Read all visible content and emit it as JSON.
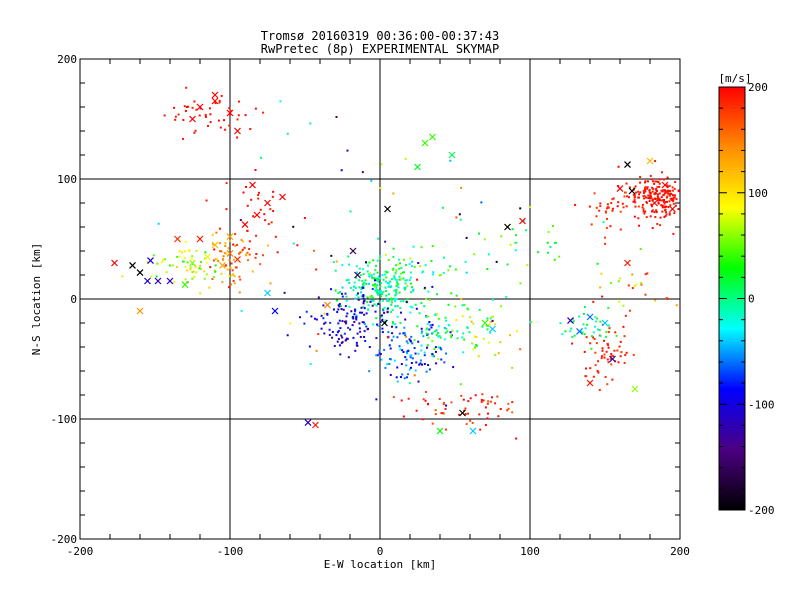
{
  "chart_data": {
    "type": "scatter",
    "title": "Tromsø 20160319 00:36:00-00:37:43",
    "subtitle": "RwPretec (8p) EXPERIMENTAL SKYMAP",
    "xlabel": "E-W location [km]",
    "ylabel": "N-S location [km]",
    "xlim": [
      -200,
      200
    ],
    "ylim": [
      -200,
      200
    ],
    "x_ticks": [
      "-200",
      "-100",
      "0",
      "100",
      "200"
    ],
    "y_ticks": [
      "-200",
      "-100",
      "0",
      "100",
      "200"
    ],
    "grid_x": [
      -100,
      0,
      100
    ],
    "grid_y": [
      -100,
      0,
      100
    ],
    "grid": true,
    "colorbar": {
      "label": "[m/s]",
      "min": -200,
      "max": 200,
      "ticks": [
        "200",
        "100",
        "0",
        "-100",
        "-200"
      ],
      "colormap": "rainbow",
      "stops": [
        "#000000",
        "#4b0082",
        "#0000ff",
        "#00ffff",
        "#00ff00",
        "#ffff00",
        "#ff8c00",
        "#ff0000"
      ]
    },
    "x_markers": [
      {
        "x": -177,
        "y": 30,
        "v": 200
      },
      {
        "x": -165,
        "y": 28,
        "v": -200
      },
      {
        "x": -160,
        "y": 22,
        "v": -200
      },
      {
        "x": -155,
        "y": 15,
        "v": -110
      },
      {
        "x": -148,
        "y": 15,
        "v": -120
      },
      {
        "x": -140,
        "y": 15,
        "v": -110
      },
      {
        "x": -153,
        "y": 32,
        "v": -110
      },
      {
        "x": -130,
        "y": 12,
        "v": 40
      },
      {
        "x": -125,
        "y": 30,
        "v": 60
      },
      {
        "x": -115,
        "y": 35,
        "v": 80
      },
      {
        "x": -105,
        "y": 28,
        "v": 130
      },
      {
        "x": -100,
        "y": 38,
        "v": 150
      },
      {
        "x": -95,
        "y": 33,
        "v": 180
      },
      {
        "x": -110,
        "y": 45,
        "v": 120
      },
      {
        "x": -120,
        "y": 50,
        "v": 190
      },
      {
        "x": -135,
        "y": 50,
        "v": 180
      },
      {
        "x": -100,
        "y": 52,
        "v": 130
      },
      {
        "x": -90,
        "y": 62,
        "v": 200
      },
      {
        "x": -82,
        "y": 70,
        "v": 200
      },
      {
        "x": -75,
        "y": 80,
        "v": 200
      },
      {
        "x": -85,
        "y": 95,
        "v": 200
      },
      {
        "x": -65,
        "y": 85,
        "v": 200
      },
      {
        "x": -120,
        "y": 160,
        "v": 200
      },
      {
        "x": -110,
        "y": 165,
        "v": 200
      },
      {
        "x": -125,
        "y": 150,
        "v": 200
      },
      {
        "x": -95,
        "y": 140,
        "v": 200
      },
      {
        "x": -100,
        "y": 155,
        "v": 200
      },
      {
        "x": -110,
        "y": 170,
        "v": 200
      },
      {
        "x": -160,
        "y": -10,
        "v": 140
      },
      {
        "x": -70,
        "y": -10,
        "v": -90
      },
      {
        "x": -75,
        "y": 5,
        "v": -40
      },
      {
        "x": -35,
        "y": -5,
        "v": 150
      },
      {
        "x": -15,
        "y": 20,
        "v": -160
      },
      {
        "x": -18,
        "y": 40,
        "v": -160
      },
      {
        "x": 5,
        "y": 75,
        "v": -200
      },
      {
        "x": 3,
        "y": -20,
        "v": -200
      },
      {
        "x": 25,
        "y": 110,
        "v": 20
      },
      {
        "x": 35,
        "y": 135,
        "v": 40
      },
      {
        "x": 48,
        "y": 120,
        "v": 10
      },
      {
        "x": 30,
        "y": 130,
        "v": 40
      },
      {
        "x": 55,
        "y": -95,
        "v": -200
      },
      {
        "x": 40,
        "y": -110,
        "v": 30
      },
      {
        "x": 62,
        "y": -110,
        "v": -40
      },
      {
        "x": 85,
        "y": 60,
        "v": -200
      },
      {
        "x": 95,
        "y": 65,
        "v": 200
      },
      {
        "x": 70,
        "y": -20,
        "v": 40
      },
      {
        "x": 75,
        "y": -25,
        "v": -40
      },
      {
        "x": 140,
        "y": -15,
        "v": -60
      },
      {
        "x": 150,
        "y": -20,
        "v": -40
      },
      {
        "x": 155,
        "y": -50,
        "v": -120
      },
      {
        "x": 140,
        "y": -70,
        "v": 190
      },
      {
        "x": 170,
        "y": -75,
        "v": 60
      },
      {
        "x": 165,
        "y": 30,
        "v": 190
      },
      {
        "x": 165,
        "y": 112,
        "v": -200
      },
      {
        "x": 168,
        "y": 90,
        "v": -200
      },
      {
        "x": 180,
        "y": 115,
        "v": 120
      },
      {
        "x": 190,
        "y": 95,
        "v": 200
      },
      {
        "x": 183,
        "y": 80,
        "v": 200
      },
      {
        "x": -48,
        "y": -103,
        "v": -110
      },
      {
        "x": -43,
        "y": -105,
        "v": 190
      },
      {
        "x": 127,
        "y": -18,
        "v": -120
      },
      {
        "x": 133,
        "y": -27,
        "v": -60
      },
      {
        "x": 160,
        "y": 92,
        "v": 200
      },
      {
        "x": 195,
        "y": 75,
        "v": 200
      }
    ],
    "clusters": [
      {
        "cx": 0,
        "cy": 8,
        "sx": 14,
        "sy": 11,
        "n": 220,
        "vmin": -40,
        "vmax": 30
      },
      {
        "cx": -20,
        "cy": -18,
        "sx": 14,
        "sy": 12,
        "n": 130,
        "vmin": -140,
        "vmax": -70
      },
      {
        "cx": 20,
        "cy": -40,
        "sx": 14,
        "sy": 14,
        "n": 120,
        "vmin": -110,
        "vmax": -30
      },
      {
        "cx": 40,
        "cy": -25,
        "sx": 12,
        "sy": 12,
        "n": 50,
        "vmin": -30,
        "vmax": 70
      },
      {
        "cx": 70,
        "cy": -20,
        "sx": 12,
        "sy": 15,
        "n": 45,
        "vmin": -20,
        "vmax": 130
      },
      {
        "cx": 55,
        "cy": -90,
        "sx": 20,
        "sy": 9,
        "n": 60,
        "vmin": 160,
        "vmax": 200
      },
      {
        "cx": 185,
        "cy": 85,
        "sx": 10,
        "sy": 9,
        "n": 200,
        "vmin": 185,
        "vmax": 200
      },
      {
        "cx": 155,
        "cy": 75,
        "sx": 12,
        "sy": 10,
        "n": 40,
        "vmin": 170,
        "vmax": 200
      },
      {
        "cx": 150,
        "cy": -45,
        "sx": 8,
        "sy": 12,
        "n": 60,
        "vmin": 170,
        "vmax": 200
      },
      {
        "cx": 140,
        "cy": -25,
        "sx": 12,
        "sy": 10,
        "n": 35,
        "vmin": -30,
        "vmax": 40
      },
      {
        "cx": -115,
        "cy": 155,
        "sx": 18,
        "sy": 12,
        "n": 45,
        "vmin": 185,
        "vmax": 200
      },
      {
        "cx": -100,
        "cy": 35,
        "sx": 12,
        "sy": 12,
        "n": 70,
        "vmin": 110,
        "vmax": 200
      },
      {
        "cx": -130,
        "cy": 30,
        "sx": 12,
        "sy": 8,
        "n": 60,
        "vmin": 20,
        "vmax": 110
      },
      {
        "cx": -80,
        "cy": 75,
        "sx": 14,
        "sy": 15,
        "n": 30,
        "vmin": 185,
        "vmax": 200
      },
      {
        "cx": 20,
        "cy": 20,
        "sx": 22,
        "sy": 12,
        "n": 50,
        "vmin": -40,
        "vmax": 80
      },
      {
        "cx": 90,
        "cy": 50,
        "sx": 25,
        "sy": 20,
        "n": 30,
        "vmin": -20,
        "vmax": 80
      },
      {
        "cx": 170,
        "cy": 10,
        "sx": 15,
        "sy": 12,
        "n": 25,
        "vmin": 40,
        "vmax": 200
      },
      {
        "cx": 0,
        "cy": 40,
        "sx": 50,
        "sy": 60,
        "n": 60,
        "vmin": -200,
        "vmax": 200
      }
    ]
  }
}
